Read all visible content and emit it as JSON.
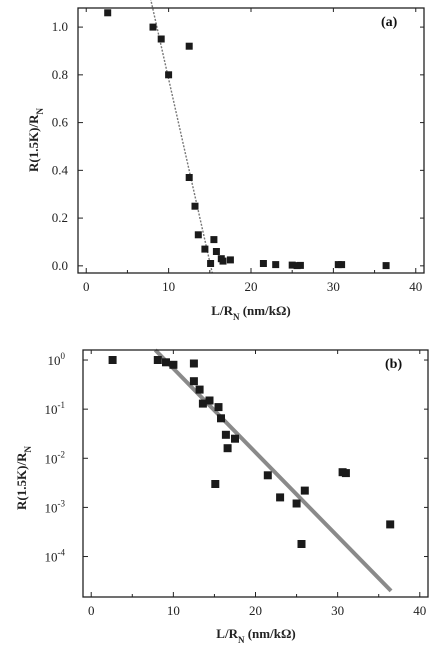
{
  "chart_data": [
    {
      "type": "scatter",
      "panel": "(a)",
      "xlabel": "L/R",
      "xlabel_sub": "N",
      "xlabel_unit": " (nm/kΩ)",
      "ylabel": "R(1.5K)/R",
      "ylabel_sub": "N",
      "xlim": [
        -1,
        41
      ],
      "ylim": [
        -0.03,
        1.08
      ],
      "xticks": [
        0,
        10,
        20,
        30,
        40
      ],
      "yticks": [
        0.0,
        0.2,
        0.4,
        0.6,
        0.8,
        1.0
      ],
      "ytick_labels": [
        "0.0",
        "0.2",
        "0.4",
        "0.6",
        "0.8",
        "1.0"
      ],
      "points": [
        [
          2.6,
          1.06
        ],
        [
          8.1,
          1.0
        ],
        [
          9.1,
          0.95
        ],
        [
          10.0,
          0.8
        ],
        [
          12.5,
          0.92
        ],
        [
          12.5,
          0.37
        ],
        [
          13.2,
          0.25
        ],
        [
          13.6,
          0.13
        ],
        [
          14.4,
          0.07
        ],
        [
          15.1,
          0.01
        ],
        [
          15.5,
          0.11
        ],
        [
          15.8,
          0.06
        ],
        [
          16.4,
          0.03
        ],
        [
          16.6,
          0.02
        ],
        [
          17.5,
          0.025
        ],
        [
          21.5,
          0.01
        ],
        [
          23.0,
          0.005
        ],
        [
          25.0,
          0.003
        ],
        [
          25.6,
          0.001
        ],
        [
          26.0,
          0.002
        ],
        [
          30.6,
          0.005
        ],
        [
          31.0,
          0.005
        ],
        [
          36.4,
          0.001
        ]
      ],
      "fit_line": [
        [
          7.8,
          1.12
        ],
        [
          15.3,
          -0.03
        ]
      ]
    },
    {
      "type": "scatter",
      "panel": "(b)",
      "yscale": "log",
      "xlabel": "L/R",
      "xlabel_sub": "N",
      "xlabel_unit": " (nm/kΩ)",
      "ylabel": "R(1.5K)/R",
      "ylabel_sub": "N",
      "xlim": [
        -1,
        41
      ],
      "ylim": [
        1.5e-05,
        1.6
      ],
      "xticks": [
        0,
        10,
        20,
        30,
        40
      ],
      "yticks": [
        1,
        0.1,
        0.01,
        0.001,
        0.0001
      ],
      "ytick_base": [
        "10",
        "10",
        "10",
        "10",
        "10"
      ],
      "ytick_exp": [
        "0",
        "-1",
        "-2",
        "-3",
        "-4"
      ],
      "points": [
        [
          2.6,
          1.0
        ],
        [
          8.1,
          1.0
        ],
        [
          9.1,
          0.9
        ],
        [
          10.0,
          0.8
        ],
        [
          12.5,
          0.85
        ],
        [
          12.5,
          0.37
        ],
        [
          13.2,
          0.25
        ],
        [
          13.6,
          0.13
        ],
        [
          14.4,
          0.15
        ],
        [
          15.1,
          0.003
        ],
        [
          15.5,
          0.11
        ],
        [
          15.8,
          0.065
        ],
        [
          16.4,
          0.03
        ],
        [
          16.6,
          0.016
        ],
        [
          17.5,
          0.025
        ],
        [
          21.5,
          0.0045
        ],
        [
          23.0,
          0.0016
        ],
        [
          25.0,
          0.0012
        ],
        [
          25.6,
          0.00018
        ],
        [
          26.0,
          0.0022
        ],
        [
          30.6,
          0.0052
        ],
        [
          31.0,
          0.005
        ],
        [
          36.4,
          0.00045
        ]
      ],
      "fit_line": [
        [
          7.8,
          1.6
        ],
        [
          36.5,
          2e-05
        ]
      ]
    }
  ]
}
